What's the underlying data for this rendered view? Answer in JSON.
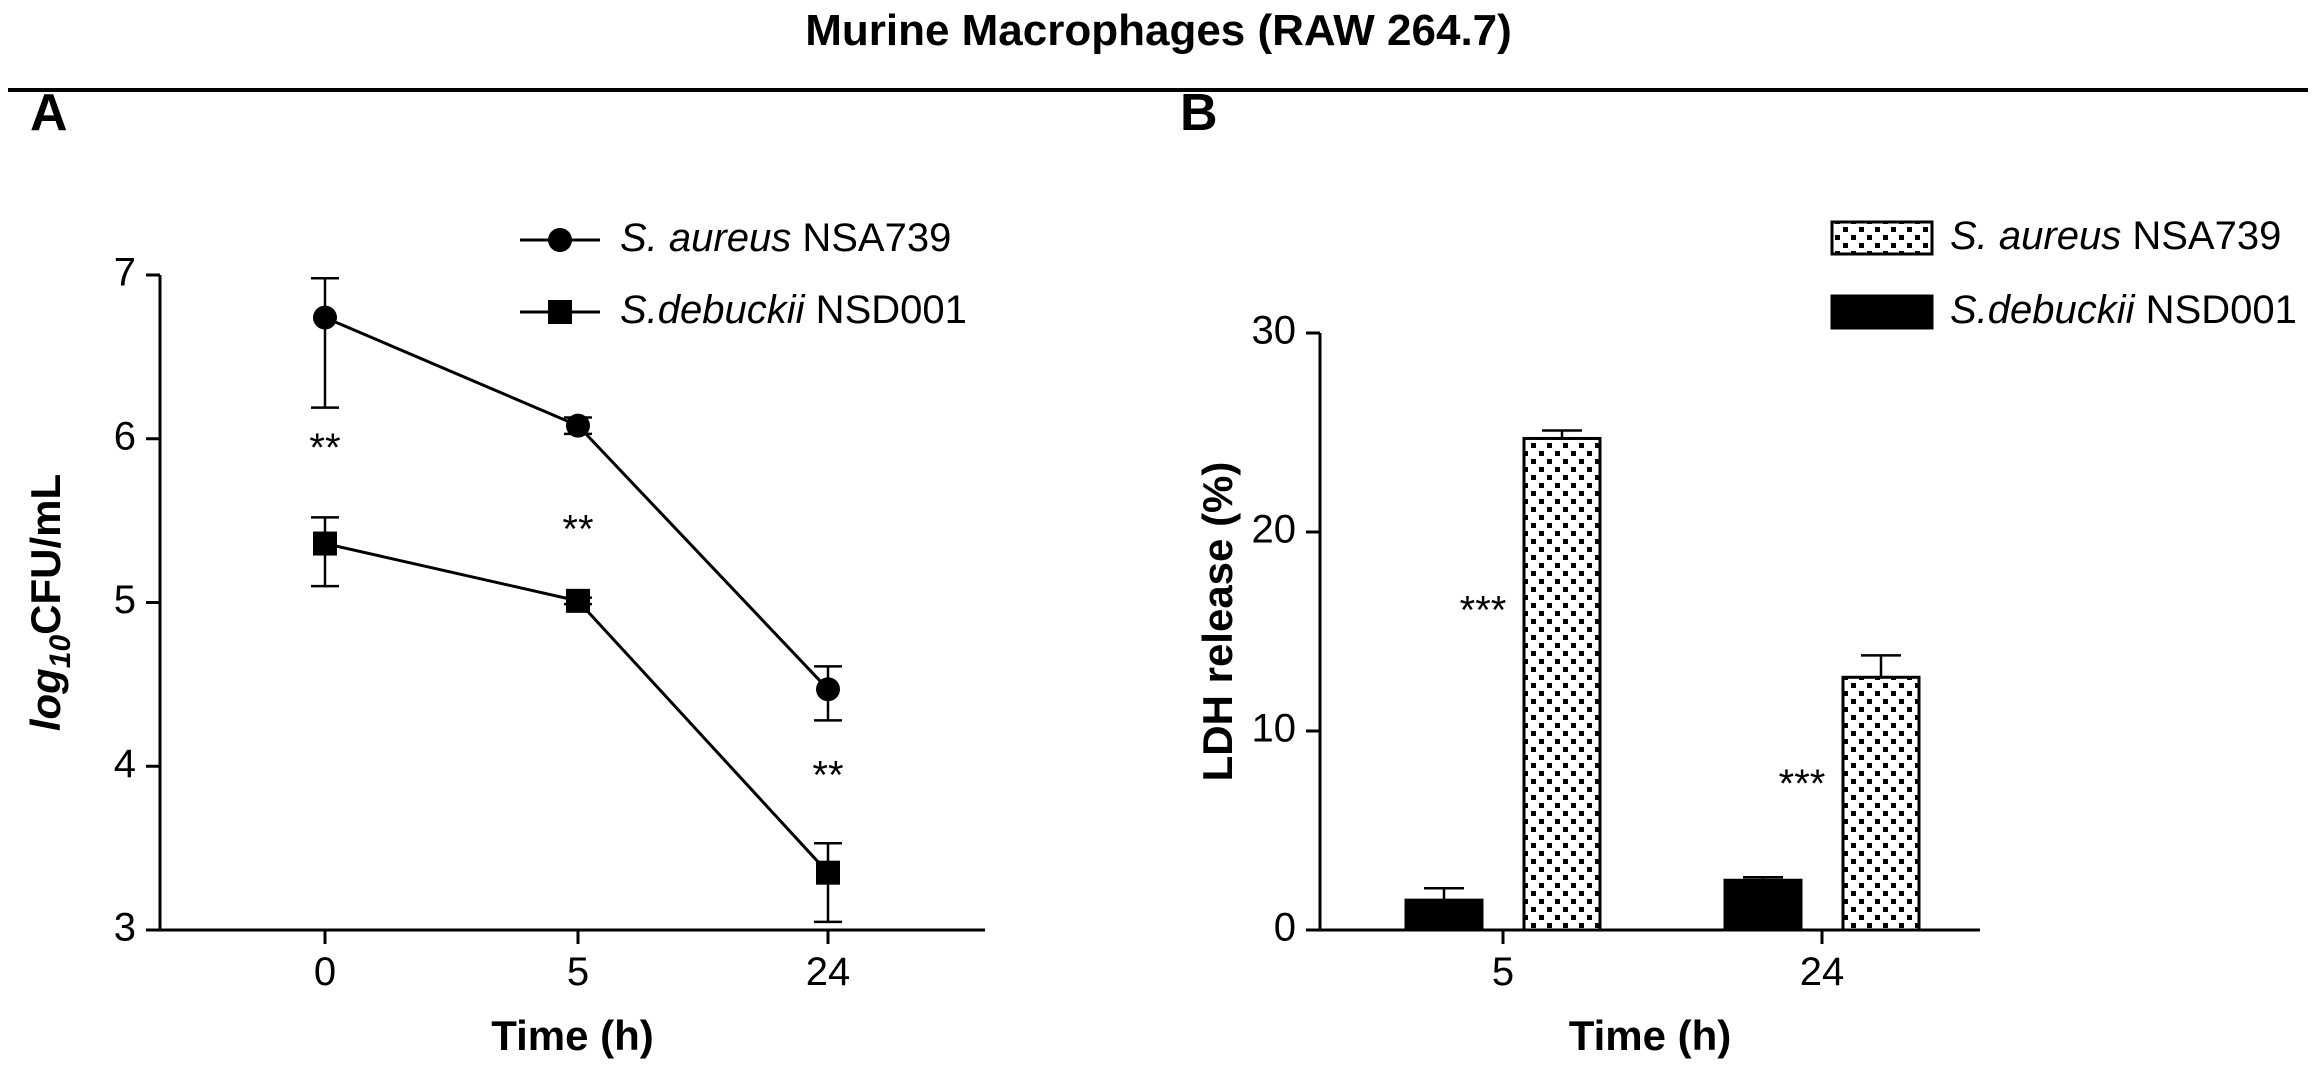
{
  "figure": {
    "title": "Murine Macrophages (RAW 264.7)"
  },
  "chart_data": [
    {
      "panel": "A",
      "type": "line",
      "categories": [
        "0",
        "5",
        "24"
      ],
      "xlabel": "Time (h)",
      "ylabel_prefix": "log",
      "ylabel_subscript": "10",
      "ylabel_suffix": "CFU/mL",
      "ylim": [
        3,
        7
      ],
      "yticks": [
        3,
        4,
        5,
        6,
        7
      ],
      "grid": false,
      "legend_position": "top-right",
      "series": [
        {
          "name_italic": "S. aureus",
          "name_rest": " NSA739",
          "marker": "circle",
          "values": [
            6.74,
            6.08,
            4.47
          ],
          "err_low": [
            0.55,
            0.05,
            0.19
          ],
          "err_high": [
            0.24,
            0.05,
            0.14
          ]
        },
        {
          "name_italic": "S.debuckii",
          "name_rest": " NSD001",
          "marker": "square",
          "values": [
            5.36,
            5.01,
            3.35
          ],
          "err_low": [
            0.26,
            0.02,
            0.3
          ],
          "err_high": [
            0.16,
            0.02,
            0.18
          ]
        }
      ],
      "annotations": [
        {
          "category": "0",
          "text": "**",
          "y": 6.0
        },
        {
          "category": "5",
          "text": "**",
          "y": 5.5
        },
        {
          "category": "24",
          "text": "**",
          "y": 4.0
        }
      ]
    },
    {
      "panel": "B",
      "type": "bar",
      "categories": [
        "5",
        "24"
      ],
      "xlabel": "Time (h)",
      "ylabel": "LDH release (%)",
      "ylim": [
        0,
        30
      ],
      "yticks": [
        0,
        10,
        20,
        30
      ],
      "grid": false,
      "legend_position": "top-right",
      "series": [
        {
          "name_italic": "S.debuckii",
          "name_rest": " NSD001",
          "fill": "solid-black",
          "values": [
            1.5,
            2.5
          ],
          "err_high": [
            0.6,
            0.15
          ]
        },
        {
          "name_italic": "S. aureus",
          "name_rest": " NSA739",
          "fill": "dotted",
          "values": [
            24.7,
            12.7
          ],
          "err_high": [
            0.4,
            1.1
          ]
        }
      ],
      "legend_order": [
        1,
        0
      ],
      "annotations": [
        {
          "category": "5",
          "text": "***",
          "y": 16.5
        },
        {
          "category": "24",
          "text": "***",
          "y": 7.8
        }
      ]
    }
  ]
}
